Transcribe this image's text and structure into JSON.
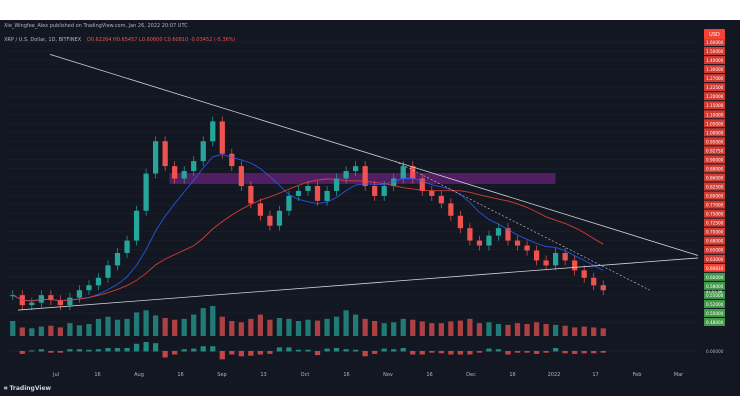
{
  "header": {
    "publisher": "Xie_Wingfee_Alex published on TradingView.com, Jan 26, 2022 20:07 UTC",
    "symbol_line": "XRP / U.S. Dollar, 1D, BITFINEX",
    "ohlc": "O0.62264 H0.65457 L0.60600 C0.60810 -0.03452 (-5.36%)"
  },
  "watermark": "TradingView",
  "colors": {
    "background": "#131722",
    "up": "#26a69a",
    "down": "#ef5350",
    "trendline": "#d1d4dc",
    "zone": "#9c27b0",
    "ma_fast": "#2962ff",
    "ma_slow": "#f44336",
    "price_label": "#f44336",
    "support_label": "#4caf50"
  },
  "chart_data": {
    "type": "line",
    "title": "XRP / U.S. Dollar, 1D, BITFINEX",
    "x_ticks": [
      "Jul",
      "16",
      "Aug",
      "16",
      "Sep",
      "13",
      "Oct",
      "16",
      "Nov",
      "16",
      "Dec",
      "16",
      "2022",
      "17",
      "Feb",
      "Mar"
    ],
    "y_ticks": [
      "1.60000",
      "1.50000",
      "1.40000",
      "1.30000",
      "1.27000",
      "1.22500",
      "1.20000",
      "1.15000",
      "1.10000",
      "1.05000",
      "1.00000",
      "0.95000",
      "0.92750",
      "0.90000",
      "0.88000",
      "0.86000",
      "0.82500",
      "0.80000",
      "0.77000",
      "0.75000",
      "0.72500",
      "0.70000",
      "0.68000",
      "0.65000",
      "0.63000",
      "0.60810",
      "0.60000",
      "0.58000",
      "0.55000",
      "0.52000",
      "0.50000",
      "0.48000"
    ],
    "current_price_label": "0.60810",
    "countdown_label": "01:51:36",
    "price_axis_top_label": "USD",
    "macd_axis_label": "0.00000",
    "series": [
      {
        "values": [
          0.58,
          0.54,
          0.55,
          0.58,
          0.56,
          0.54,
          0.57,
          0.6,
          0.62,
          0.65,
          0.7,
          0.75,
          0.8,
          0.92,
          1.07,
          1.2,
          1.1,
          1.05,
          1.08,
          1.12,
          1.2,
          1.28,
          1.15,
          1.1,
          1.02,
          0.95,
          0.9,
          0.86,
          0.92,
          0.98,
          1.0,
          1.02,
          0.96,
          1.0,
          1.05,
          1.08,
          1.1,
          1.02,
          0.98,
          1.02,
          1.05,
          1.1,
          1.05,
          1.0,
          0.98,
          0.95,
          0.9,
          0.85,
          0.8,
          0.78,
          0.82,
          0.85,
          0.8,
          0.78,
          0.76,
          0.72,
          0.7,
          0.75,
          0.72,
          0.68,
          0.65,
          0.62,
          0.6
        ]
      }
    ],
    "volume": [
      35,
      20,
      18,
      22,
      24,
      20,
      30,
      25,
      28,
      40,
      45,
      38,
      40,
      55,
      60,
      48,
      42,
      38,
      40,
      50,
      65,
      70,
      45,
      35,
      32,
      40,
      50,
      38,
      42,
      40,
      35,
      38,
      36,
      40,
      45,
      60,
      50,
      40,
      35,
      30,
      32,
      40,
      38,
      34,
      30,
      30,
      34,
      36,
      40,
      30,
      32,
      28,
      26,
      30,
      28,
      32,
      28,
      26,
      24,
      20,
      22,
      20,
      18
    ],
    "ylim": [
      0.48,
      1.6
    ]
  }
}
